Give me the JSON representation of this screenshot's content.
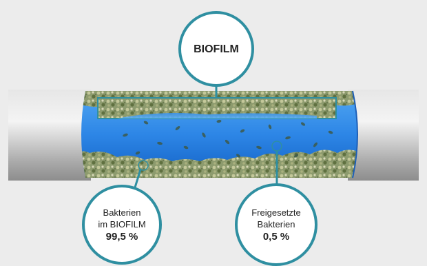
{
  "colors": {
    "background": "#ececec",
    "pipe": "#b8b8b8",
    "water": "#2a7fe0",
    "biofilm": "#8a9a6a",
    "callout_border": "#2f8fa1"
  },
  "callouts": {
    "biofilm": {
      "label": "BIOFILM"
    },
    "embedded": {
      "line1": "Bakterien",
      "line2": "im BIOFILM",
      "value": "99,5 %"
    },
    "released": {
      "line1": "Freigesetzte",
      "line2": "Bakterien",
      "value": "0,5 %"
    }
  }
}
